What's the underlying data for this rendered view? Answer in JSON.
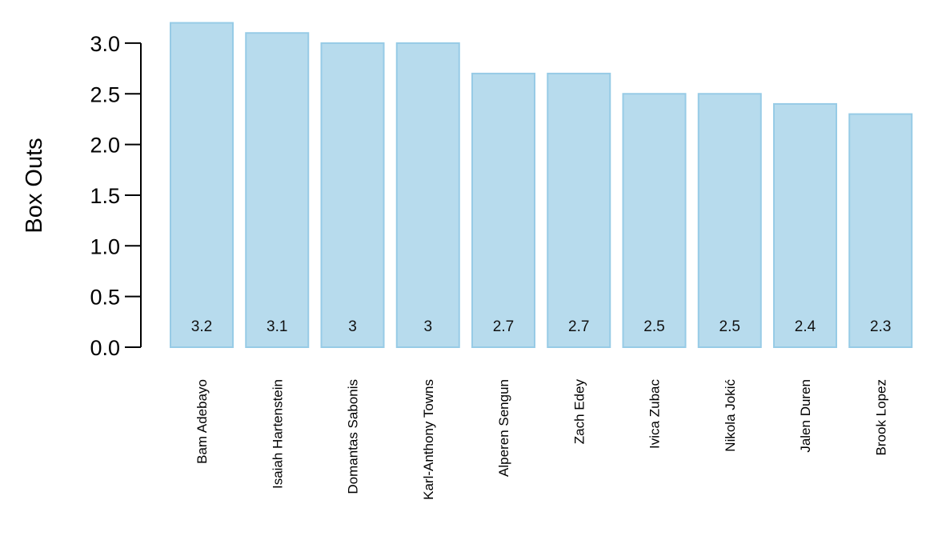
{
  "chart_data": {
    "type": "bar",
    "ylabel": "Box Outs",
    "categories": [
      "Bam Adebayo",
      "Isaiah Hartenstein",
      "Domantas Sabonis",
      "Karl-Anthony Towns",
      "Alperen Sengun",
      "Zach Edey",
      "Ivica Zubac",
      "Nikola Jokić",
      "Jalen Duren",
      "Brook Lopez"
    ],
    "values": [
      3.2,
      3.1,
      3,
      3,
      2.7,
      2.7,
      2.5,
      2.5,
      2.4,
      2.3
    ],
    "value_labels": [
      "3.2",
      "3.1",
      "3",
      "3",
      "2.7",
      "2.7",
      "2.5",
      "2.5",
      "2.4",
      "2.3"
    ],
    "yticks": [
      0.0,
      0.5,
      1.0,
      1.5,
      2.0,
      2.5,
      3.0
    ],
    "ytick_labels": [
      "0.0",
      "0.5",
      "1.0",
      "1.5",
      "2.0",
      "2.5",
      "3.0"
    ],
    "ylim": [
      0,
      3.2
    ],
    "grid": false,
    "bar_fill": "#b7dbed",
    "bar_stroke": "#97cbe6"
  }
}
